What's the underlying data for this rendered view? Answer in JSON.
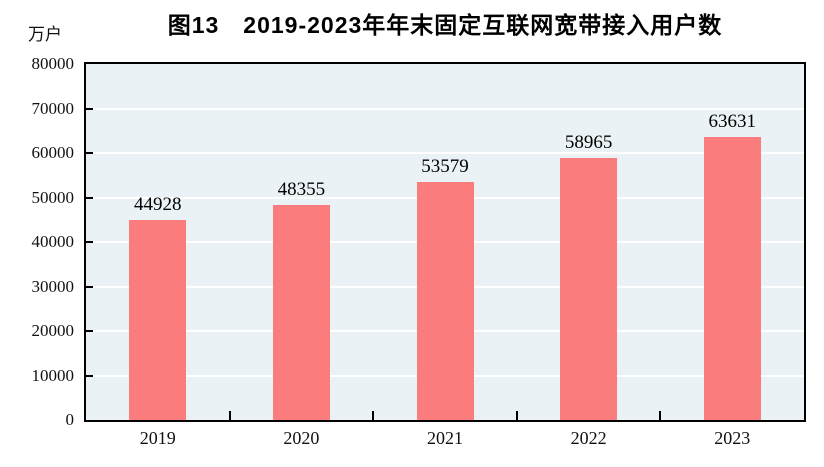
{
  "chart_data": {
    "type": "bar",
    "title": "图13　2019-2023年年末固定互联网宽带接入用户数",
    "unit_label": "万户",
    "xlabel": "",
    "ylabel": "万户",
    "categories": [
      "2019",
      "2020",
      "2021",
      "2022",
      "2023"
    ],
    "values": [
      44928,
      48355,
      53579,
      58965,
      63631
    ],
    "value_labels": [
      "44928",
      "48355",
      "53579",
      "58965",
      "63631"
    ],
    "ylim": [
      0,
      80000
    ],
    "ytick_step": 10000,
    "yticks": [
      0,
      10000,
      20000,
      30000,
      40000,
      50000,
      60000,
      70000,
      80000
    ],
    "grid": true,
    "legend_position": "none",
    "colors": {
      "bar": "#FA7C7C",
      "plot_background": "#EBF2F5",
      "gridline": "#FFFFFF",
      "axis": "#000000",
      "text": "#000000"
    }
  }
}
